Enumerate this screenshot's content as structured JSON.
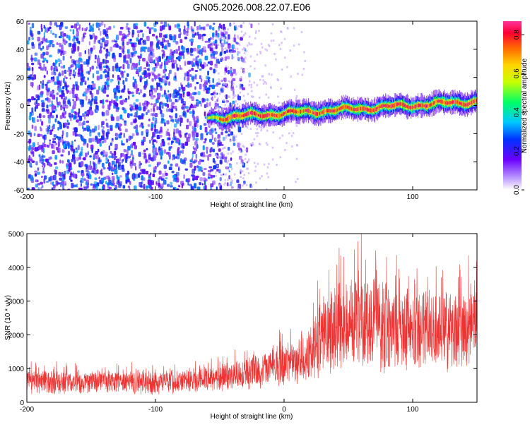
{
  "title": "GN05.2026.008.22.07.E06",
  "chart_data": [
    {
      "type": "heatmap",
      "xlabel": "Height of straight line (km)",
      "ylabel": "Frequency (Hz)",
      "xlim": [
        -200,
        150
      ],
      "ylim": [
        -60,
        60
      ],
      "xticks": [
        -200,
        -100,
        0,
        100
      ],
      "yticks": [
        -60,
        -40,
        -20,
        0,
        20,
        40,
        60
      ],
      "colorbar": {
        "label": "Normalized spectral amplitude",
        "ticks": [
          0.0,
          0.2,
          0.4,
          0.6,
          0.8
        ],
        "range": [
          0.0,
          0.87
        ]
      },
      "ridge": {
        "x_start": -60,
        "x_end": 150,
        "freq_at_start": -9,
        "freq_at_end": 3,
        "peak_amplitude": 0.85
      },
      "noise_region": {
        "x_from": -200,
        "x_to": -55,
        "amplitude": 0.25
      },
      "grid": false
    },
    {
      "type": "line",
      "xlabel": "Height of straight line (km)",
      "ylabel": "SNR (10 * v/v)",
      "xlim": [
        -200,
        150
      ],
      "ylim": [
        0,
        5000
      ],
      "xticks": [
        -200,
        -100,
        0,
        100
      ],
      "yticks": [
        0,
        1000,
        2000,
        3000,
        4000,
        5000
      ],
      "color": "#ee3333",
      "envelope": [
        {
          "x": -200,
          "low": 200,
          "high": 1000
        },
        {
          "x": -150,
          "low": 200,
          "high": 1000
        },
        {
          "x": -100,
          "low": 200,
          "high": 1000
        },
        {
          "x": -60,
          "low": 250,
          "high": 1100
        },
        {
          "x": -40,
          "low": 300,
          "high": 1300
        },
        {
          "x": -20,
          "low": 350,
          "high": 1600
        },
        {
          "x": 0,
          "low": 400,
          "high": 1800
        },
        {
          "x": 20,
          "low": 500,
          "high": 2300
        },
        {
          "x": 30,
          "low": 700,
          "high": 3300
        },
        {
          "x": 50,
          "low": 800,
          "high": 3900
        },
        {
          "x": 70,
          "low": 800,
          "high": 3800
        },
        {
          "x": 100,
          "low": 800,
          "high": 3500
        },
        {
          "x": 130,
          "low": 800,
          "high": 3400
        },
        {
          "x": 150,
          "low": 900,
          "high": 3700
        }
      ],
      "max_point": {
        "x": 60,
        "y": 5000
      },
      "grid": false
    }
  ]
}
